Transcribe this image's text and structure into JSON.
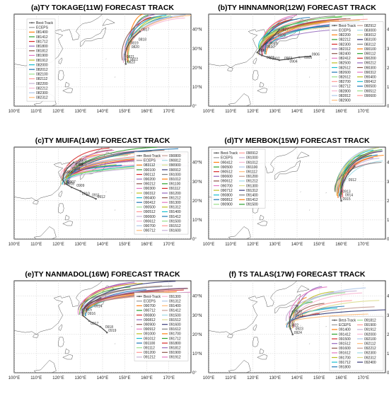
{
  "lon_ticks": [
    "100°E",
    "110°E",
    "120°E",
    "130°E",
    "140°E",
    "150°E",
    "160°E",
    "170°E"
  ],
  "lat_ticks": [
    "0°",
    "10°N",
    "20°N",
    "30°N",
    "40°N"
  ],
  "track_colors": [
    "#7f7f7f",
    "#ff7f0e",
    "#2ca02c",
    "#d62728",
    "#9467bd",
    "#8c564b",
    "#e377c2",
    "#bcbd22",
    "#17becf",
    "#1f77b4",
    "#98df8a",
    "#ff9896",
    "#c5b0d5",
    "#f7b6d2",
    "#aec7e8",
    "#ffbb78",
    "#c49c94",
    "#9edae5",
    "#dbdb8d",
    "#393b79"
  ],
  "chart_data": [
    {
      "type": "line",
      "title": "(a)TY TOKAGE(11W) FORECAST TRACK",
      "xlim": [
        100,
        180
      ],
      "ylim": [
        0,
        48
      ],
      "legend": [
        "Best-Track",
        "ECEPS",
        "081400",
        "081412",
        "081712",
        "081800",
        "081812",
        "081900",
        "081912",
        "082000",
        "082012",
        "082100",
        "082112",
        "082200",
        "082212",
        "082300",
        "082312"
      ],
      "legend_columns": 1,
      "legend_placement": "center-left",
      "best_track": [
        [
          150.5,
          22
        ],
        [
          150.3,
          24.5
        ],
        [
          150.2,
          27
        ],
        [
          150.8,
          30
        ],
        [
          152,
          33
        ],
        [
          154,
          36
        ],
        [
          157,
          39
        ]
      ],
      "fan": {
        "origin": [
          150.5,
          24
        ],
        "end_lon": [
          158,
          180
        ],
        "end_lat": [
          46,
          48
        ]
      },
      "annotations": [
        "0823",
        "0822",
        "0821",
        "0820",
        "0819",
        "0818",
        "0817"
      ]
    },
    {
      "type": "line",
      "title": "(b)TY HINNAMNOR(12W) FORECAST TRACK",
      "xlim": [
        100,
        180
      ],
      "ylim": [
        0,
        48
      ],
      "legend": [
        "Best-Track",
        "ECEPS",
        "082200",
        "082212",
        "082300",
        "082312",
        "082400",
        "082412",
        "082500",
        "082512",
        "082600",
        "082612",
        "082700",
        "082712",
        "082800",
        "082812",
        "082900",
        "082912",
        "083000",
        "083012",
        "083100",
        "083112",
        "090100",
        "090112",
        "090200",
        "090212",
        "090300",
        "090312",
        "090400",
        "090412",
        "090500",
        "090512",
        "090600"
      ],
      "legend_columns": 2,
      "legend_placement": "bottom-right",
      "best_track": [
        [
          146,
          26
        ],
        [
          141,
          25.5
        ],
        [
          136,
          24.5
        ],
        [
          132,
          24
        ],
        [
          128,
          25
        ],
        [
          124,
          26.5
        ],
        [
          122,
          28
        ],
        [
          124,
          31
        ],
        [
          127,
          34
        ],
        [
          129,
          36
        ],
        [
          132,
          40
        ]
      ],
      "fan": {
        "origin": [
          124,
          28
        ],
        "end_lon": [
          135,
          172
        ],
        "end_lat": [
          40,
          48
        ]
      },
      "annotations": [
        "0906",
        "0905",
        "0904",
        "0903",
        "0902",
        "0901",
        "0831",
        "0830",
        "0829",
        "0828",
        "0827"
      ]
    },
    {
      "type": "line",
      "title": "(c)TY MUIFA(14W) FORECAST TRACK",
      "xlim": [
        100,
        180
      ],
      "ylim": [
        0,
        48
      ],
      "legend": [
        "Best-Track",
        "ECEPS",
        "083112",
        "090100",
        "090112",
        "090200",
        "090212",
        "090300",
        "090312",
        "090400",
        "090412",
        "090500",
        "090512",
        "090600",
        "090612",
        "090700",
        "090712",
        "090800",
        "090812",
        "090900",
        "090912",
        "091000",
        "091012",
        "091100",
        "091112",
        "091200",
        "091212",
        "091300",
        "091312",
        "091400",
        "091412",
        "091500",
        "091512",
        "091600"
      ],
      "legend_columns": 2,
      "legend_placement": "right",
      "best_track": [
        [
          137,
          21
        ],
        [
          133,
          23
        ],
        [
          130,
          25
        ],
        [
          126,
          27
        ],
        [
          123,
          29
        ],
        [
          122,
          31
        ],
        [
          122.5,
          34
        ],
        [
          124,
          37
        ],
        [
          127,
          40
        ]
      ],
      "fan": {
        "origin": [
          123,
          30
        ],
        "end_lon": [
          140,
          178
        ],
        "end_lat": [
          38,
          48
        ]
      },
      "annotations": [
        "0912",
        "0911",
        "0910",
        "0909",
        "0908",
        "0907",
        "0906",
        "0905",
        "0904",
        "0903",
        "0902",
        "0901"
      ]
    },
    {
      "type": "line",
      "title": "(d)TY MERBOK(15W) FORECAST TRACK",
      "xlim": [
        100,
        180
      ],
      "ylim": [
        0,
        48
      ],
      "legend": [
        "Best-Track",
        "ECEPS",
        "090412",
        "090500",
        "090512",
        "090600",
        "090612",
        "090700",
        "090712",
        "090800",
        "090812",
        "090900",
        "090912",
        "091000",
        "091012",
        "091100",
        "091112",
        "091200",
        "091212",
        "091300",
        "091312",
        "091400",
        "091412",
        "091500"
      ],
      "legend_columns": 2,
      "legend_placement": "top-left",
      "best_track": [
        [
          160,
          20
        ],
        [
          159.5,
          23
        ],
        [
          160,
          26
        ],
        [
          161,
          30
        ],
        [
          163,
          34
        ],
        [
          166,
          38
        ]
      ],
      "fan": {
        "origin": [
          159,
          23
        ],
        "end_lon": [
          172,
          180
        ],
        "end_lat": [
          40,
          48
        ]
      },
      "annotations": [
        "0915",
        "0914",
        "0913",
        "0912"
      ]
    },
    {
      "type": "line",
      "title": "(e)TY NANMADOL(16W) FORECAST TRACK",
      "xlim": [
        100,
        180
      ],
      "ylim": [
        0,
        48
      ],
      "legend": [
        "Best-Track",
        "ECEPS",
        "090700",
        "090712",
        "090800",
        "090812",
        "090900",
        "090912",
        "091000",
        "091012",
        "091100",
        "091112",
        "091200",
        "091212",
        "091300",
        "091312",
        "091400",
        "091412",
        "091500",
        "091512",
        "091600",
        "091612",
        "091700",
        "091712",
        "091800",
        "091812",
        "091900",
        "091912"
      ],
      "legend_columns": 2,
      "legend_placement": "right",
      "best_track": [
        [
          142,
          21
        ],
        [
          139,
          24
        ],
        [
          134,
          27
        ],
        [
          131,
          30
        ],
        [
          131,
          33
        ],
        [
          134,
          36
        ],
        [
          139,
          39
        ]
      ],
      "fan": {
        "origin": [
          131,
          31
        ],
        "end_lon": [
          150,
          180
        ],
        "end_lat": [
          40,
          48
        ]
      },
      "annotations": [
        "0919",
        "0918",
        "0917",
        "0916",
        "0915",
        "0914"
      ]
    },
    {
      "type": "line",
      "title": "(f) TS TALAS(17W) FORECAST TRACK",
      "xlim": [
        100,
        180
      ],
      "ylim": [
        0,
        48
      ],
      "legend": [
        "Best-Track",
        "ECEPS",
        "091400",
        "091412",
        "091500",
        "091512",
        "091600",
        "091612",
        "091700",
        "091712",
        "091800",
        "091812",
        "091900",
        "091912",
        "092000",
        "092100",
        "092112",
        "092212",
        "092300",
        "092312",
        "092400"
      ],
      "legend_columns": 2,
      "legend_placement": "bottom-right",
      "best_track": [
        [
          138,
          20
        ],
        [
          137,
          23
        ],
        [
          136.5,
          26
        ],
        [
          137,
          29
        ],
        [
          138,
          32
        ],
        [
          140,
          35
        ]
      ],
      "fan": {
        "origin": [
          137,
          25
        ],
        "end_lon": [
          145,
          180
        ],
        "end_lat": [
          30,
          46
        ]
      },
      "annotations": [
        "0924",
        "0923",
        "0922",
        "0921",
        "0920"
      ]
    }
  ]
}
